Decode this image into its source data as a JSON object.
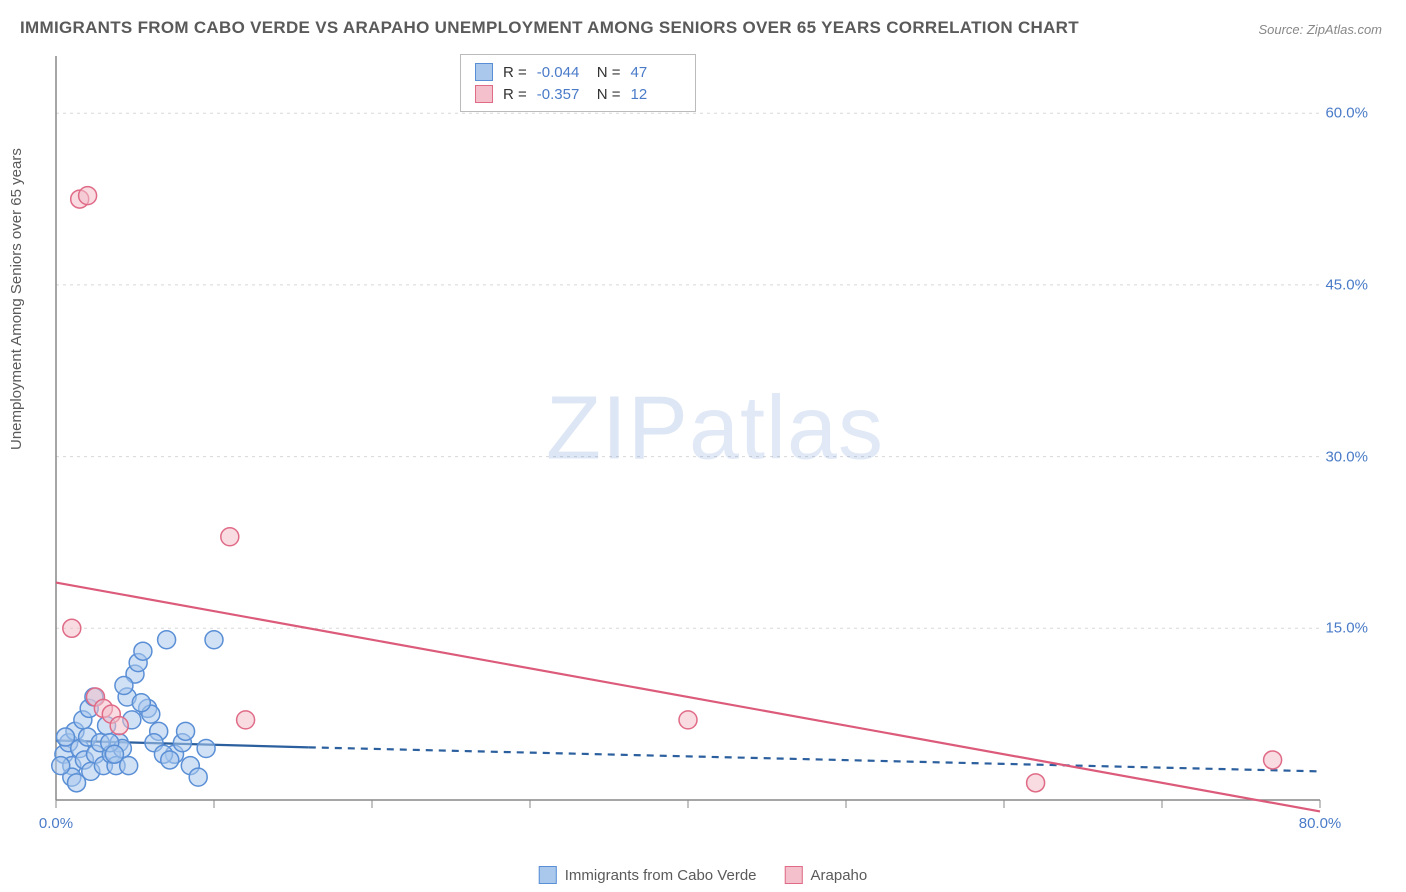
{
  "title": "IMMIGRANTS FROM CABO VERDE VS ARAPAHO UNEMPLOYMENT AMONG SENIORS OVER 65 YEARS CORRELATION CHART",
  "source": "Source: ZipAtlas.com",
  "y_axis_label": "Unemployment Among Seniors over 65 years",
  "watermark_a": "ZIP",
  "watermark_b": "atlas",
  "chart": {
    "type": "scatter",
    "xlim": [
      0,
      80
    ],
    "ylim": [
      0,
      65
    ],
    "x_ticks": [
      0,
      80
    ],
    "x_tick_labels": [
      "0.0%",
      "80.0%"
    ],
    "y_ticks": [
      15,
      30,
      45,
      60
    ],
    "y_tick_labels": [
      "15.0%",
      "30.0%",
      "45.0%",
      "60.0%"
    ],
    "grid_color": "#d8d8d8",
    "axis_color": "#888888",
    "background_color": "#ffffff",
    "marker_radius": 9,
    "marker_stroke_width": 1.5,
    "series": [
      {
        "name": "Immigrants from Cabo Verde",
        "fill": "#a9c8ec",
        "stroke": "#5a8fd6",
        "fill_opacity": 0.55,
        "trend": {
          "solid_x1": 0,
          "solid_y1": 5.2,
          "solid_x2": 16,
          "solid_y2": 4.6,
          "dash_x2": 80,
          "dash_y2": 2.5,
          "color": "#2b5f9e",
          "width": 2.2
        },
        "points": [
          [
            0.5,
            4
          ],
          [
            0.8,
            5
          ],
          [
            1,
            3
          ],
          [
            1.2,
            6
          ],
          [
            1.5,
            4.5
          ],
          [
            1.8,
            3.5
          ],
          [
            2,
            5.5
          ],
          [
            2.2,
            2.5
          ],
          [
            2.5,
            4
          ],
          [
            2.8,
            5
          ],
          [
            3,
            3
          ],
          [
            3.2,
            6.5
          ],
          [
            3.5,
            4
          ],
          [
            3.8,
            3
          ],
          [
            4,
            5
          ],
          [
            4.2,
            4.5
          ],
          [
            4.5,
            9
          ],
          [
            4.8,
            7
          ],
          [
            5,
            11
          ],
          [
            5.2,
            12
          ],
          [
            5.5,
            13
          ],
          [
            5.8,
            8
          ],
          [
            6,
            7.5
          ],
          [
            6.5,
            6
          ],
          [
            7,
            14
          ],
          [
            7.5,
            4
          ],
          [
            8,
            5
          ],
          [
            8.5,
            3
          ],
          [
            9,
            2
          ],
          [
            9.5,
            4.5
          ],
          [
            10,
            14
          ],
          [
            1,
            2
          ],
          [
            1.3,
            1.5
          ],
          [
            1.7,
            7
          ],
          [
            2.1,
            8
          ],
          [
            2.4,
            9
          ],
          [
            0.3,
            3
          ],
          [
            0.6,
            5.5
          ],
          [
            4.3,
            10
          ],
          [
            5.4,
            8.5
          ],
          [
            6.2,
            5
          ],
          [
            6.8,
            4
          ],
          [
            7.2,
            3.5
          ],
          [
            8.2,
            6
          ],
          [
            3.4,
            5
          ],
          [
            3.7,
            4
          ],
          [
            4.6,
            3
          ]
        ]
      },
      {
        "name": "Arapaho",
        "fill": "#f3c0cb",
        "stroke": "#e06b87",
        "fill_opacity": 0.55,
        "trend": {
          "solid_x1": 0,
          "solid_y1": 19,
          "solid_x2": 80,
          "solid_y2": -1,
          "color": "#dc5a7a",
          "width": 2.2
        },
        "points": [
          [
            1.5,
            52.5
          ],
          [
            2,
            52.8
          ],
          [
            1,
            15
          ],
          [
            11,
            23
          ],
          [
            2.5,
            9
          ],
          [
            3,
            8
          ],
          [
            3.5,
            7.5
          ],
          [
            4,
            6.5
          ],
          [
            12,
            7
          ],
          [
            40,
            7
          ],
          [
            62,
            1.5
          ],
          [
            77,
            3.5
          ]
        ]
      }
    ]
  },
  "stats": [
    {
      "series": 0,
      "r": "-0.044",
      "n": "47"
    },
    {
      "series": 1,
      "r": "-0.357",
      "n": "12"
    }
  ],
  "legend": [
    {
      "label": "Immigrants from Cabo Verde",
      "fill": "#a9c8ec",
      "stroke": "#5a8fd6"
    },
    {
      "label": "Arapaho",
      "fill": "#f3c0cb",
      "stroke": "#e06b87"
    }
  ]
}
